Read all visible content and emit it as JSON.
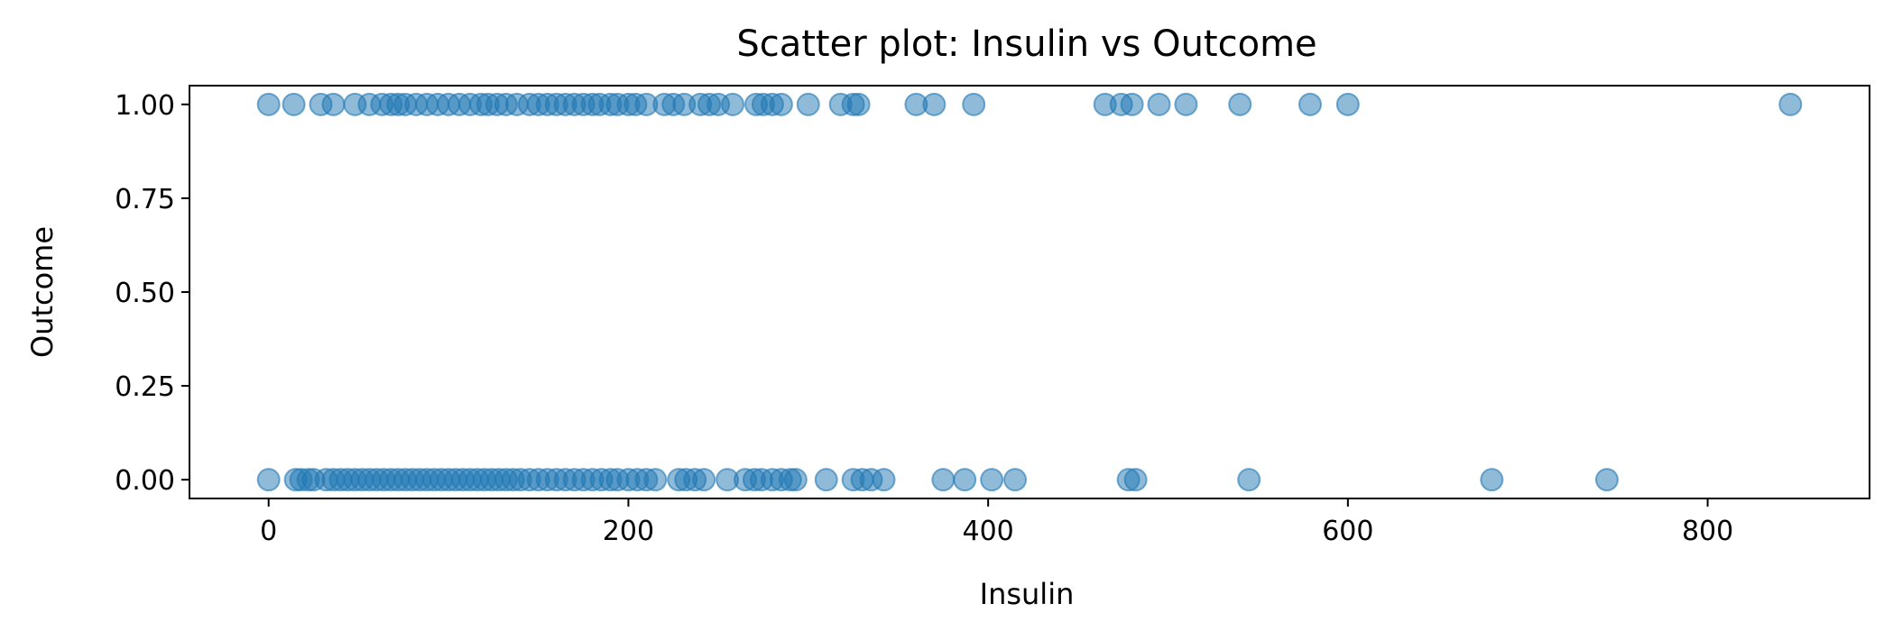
{
  "chart_data": {
    "type": "scatter",
    "title": "Scatter plot: Insulin vs Outcome",
    "xlabel": "Insulin",
    "ylabel": "Outcome",
    "xlim": [
      -44,
      890
    ],
    "ylim": [
      -0.05,
      1.05
    ],
    "x_ticks": [
      0,
      200,
      400,
      600,
      800
    ],
    "x_tick_labels": [
      "0",
      "200",
      "400",
      "600",
      "800"
    ],
    "y_ticks": [
      0.0,
      0.25,
      0.5,
      0.75,
      1.0
    ],
    "y_tick_labels": [
      "0.00",
      "0.25",
      "0.50",
      "0.75",
      "1.00"
    ],
    "grid": false,
    "marker_color": "#1f77b4",
    "marker_alpha": 0.5,
    "series": [
      {
        "values": [
          {
            "x": 0,
            "y": 1
          },
          {
            "x": 14,
            "y": 1
          },
          {
            "x": 29,
            "y": 1
          },
          {
            "x": 36,
            "y": 1
          },
          {
            "x": 48,
            "y": 1
          },
          {
            "x": 56,
            "y": 1
          },
          {
            "x": 63,
            "y": 1
          },
          {
            "x": 68,
            "y": 1
          },
          {
            "x": 72,
            "y": 1
          },
          {
            "x": 76,
            "y": 1
          },
          {
            "x": 82,
            "y": 1
          },
          {
            "x": 88,
            "y": 1
          },
          {
            "x": 94,
            "y": 1
          },
          {
            "x": 100,
            "y": 1
          },
          {
            "x": 106,
            "y": 1
          },
          {
            "x": 112,
            "y": 1
          },
          {
            "x": 118,
            "y": 1
          },
          {
            "x": 122,
            "y": 1
          },
          {
            "x": 127,
            "y": 1
          },
          {
            "x": 132,
            "y": 1
          },
          {
            "x": 138,
            "y": 1
          },
          {
            "x": 145,
            "y": 1
          },
          {
            "x": 150,
            "y": 1
          },
          {
            "x": 155,
            "y": 1
          },
          {
            "x": 160,
            "y": 1
          },
          {
            "x": 165,
            "y": 1
          },
          {
            "x": 170,
            "y": 1
          },
          {
            "x": 175,
            "y": 1
          },
          {
            "x": 180,
            "y": 1
          },
          {
            "x": 184,
            "y": 1
          },
          {
            "x": 190,
            "y": 1
          },
          {
            "x": 194,
            "y": 1
          },
          {
            "x": 200,
            "y": 1
          },
          {
            "x": 204,
            "y": 1
          },
          {
            "x": 210,
            "y": 1
          },
          {
            "x": 220,
            "y": 1
          },
          {
            "x": 225,
            "y": 1
          },
          {
            "x": 231,
            "y": 1
          },
          {
            "x": 240,
            "y": 1
          },
          {
            "x": 245,
            "y": 1
          },
          {
            "x": 250,
            "y": 1
          },
          {
            "x": 258,
            "y": 1
          },
          {
            "x": 271,
            "y": 1
          },
          {
            "x": 275,
            "y": 1
          },
          {
            "x": 280,
            "y": 1
          },
          {
            "x": 285,
            "y": 1
          },
          {
            "x": 300,
            "y": 1
          },
          {
            "x": 318,
            "y": 1
          },
          {
            "x": 325,
            "y": 1
          },
          {
            "x": 328,
            "y": 1
          },
          {
            "x": 360,
            "y": 1
          },
          {
            "x": 370,
            "y": 1
          },
          {
            "x": 392,
            "y": 1
          },
          {
            "x": 465,
            "y": 1
          },
          {
            "x": 474,
            "y": 1
          },
          {
            "x": 480,
            "y": 1
          },
          {
            "x": 495,
            "y": 1
          },
          {
            "x": 510,
            "y": 1
          },
          {
            "x": 540,
            "y": 1
          },
          {
            "x": 579,
            "y": 1
          },
          {
            "x": 600,
            "y": 1
          },
          {
            "x": 846,
            "y": 1
          },
          {
            "x": 0,
            "y": 0
          },
          {
            "x": 15,
            "y": 0
          },
          {
            "x": 18,
            "y": 0
          },
          {
            "x": 22,
            "y": 0
          },
          {
            "x": 25,
            "y": 0
          },
          {
            "x": 32,
            "y": 0
          },
          {
            "x": 36,
            "y": 0
          },
          {
            "x": 40,
            "y": 0
          },
          {
            "x": 44,
            "y": 0
          },
          {
            "x": 48,
            "y": 0
          },
          {
            "x": 52,
            "y": 0
          },
          {
            "x": 56,
            "y": 0
          },
          {
            "x": 60,
            "y": 0
          },
          {
            "x": 64,
            "y": 0
          },
          {
            "x": 68,
            "y": 0
          },
          {
            "x": 72,
            "y": 0
          },
          {
            "x": 76,
            "y": 0
          },
          {
            "x": 80,
            "y": 0
          },
          {
            "x": 84,
            "y": 0
          },
          {
            "x": 88,
            "y": 0
          },
          {
            "x": 92,
            "y": 0
          },
          {
            "x": 96,
            "y": 0
          },
          {
            "x": 100,
            "y": 0
          },
          {
            "x": 104,
            "y": 0
          },
          {
            "x": 108,
            "y": 0
          },
          {
            "x": 112,
            "y": 0
          },
          {
            "x": 116,
            "y": 0
          },
          {
            "x": 120,
            "y": 0
          },
          {
            "x": 124,
            "y": 0
          },
          {
            "x": 128,
            "y": 0
          },
          {
            "x": 132,
            "y": 0
          },
          {
            "x": 136,
            "y": 0
          },
          {
            "x": 140,
            "y": 0
          },
          {
            "x": 145,
            "y": 0
          },
          {
            "x": 150,
            "y": 0
          },
          {
            "x": 155,
            "y": 0
          },
          {
            "x": 160,
            "y": 0
          },
          {
            "x": 165,
            "y": 0
          },
          {
            "x": 170,
            "y": 0
          },
          {
            "x": 175,
            "y": 0
          },
          {
            "x": 180,
            "y": 0
          },
          {
            "x": 185,
            "y": 0
          },
          {
            "x": 190,
            "y": 0
          },
          {
            "x": 194,
            "y": 0
          },
          {
            "x": 200,
            "y": 0
          },
          {
            "x": 205,
            "y": 0
          },
          {
            "x": 210,
            "y": 0
          },
          {
            "x": 215,
            "y": 0
          },
          {
            "x": 228,
            "y": 0
          },
          {
            "x": 232,
            "y": 0
          },
          {
            "x": 237,
            "y": 0
          },
          {
            "x": 242,
            "y": 0
          },
          {
            "x": 255,
            "y": 0
          },
          {
            "x": 265,
            "y": 0
          },
          {
            "x": 270,
            "y": 0
          },
          {
            "x": 274,
            "y": 0
          },
          {
            "x": 280,
            "y": 0
          },
          {
            "x": 285,
            "y": 0
          },
          {
            "x": 290,
            "y": 0
          },
          {
            "x": 293,
            "y": 0
          },
          {
            "x": 310,
            "y": 0
          },
          {
            "x": 325,
            "y": 0
          },
          {
            "x": 330,
            "y": 0
          },
          {
            "x": 335,
            "y": 0
          },
          {
            "x": 342,
            "y": 0
          },
          {
            "x": 375,
            "y": 0
          },
          {
            "x": 387,
            "y": 0
          },
          {
            "x": 402,
            "y": 0
          },
          {
            "x": 415,
            "y": 0
          },
          {
            "x": 478,
            "y": 0
          },
          {
            "x": 482,
            "y": 0
          },
          {
            "x": 545,
            "y": 0
          },
          {
            "x": 680,
            "y": 0
          },
          {
            "x": 744,
            "y": 0
          }
        ]
      }
    ]
  }
}
